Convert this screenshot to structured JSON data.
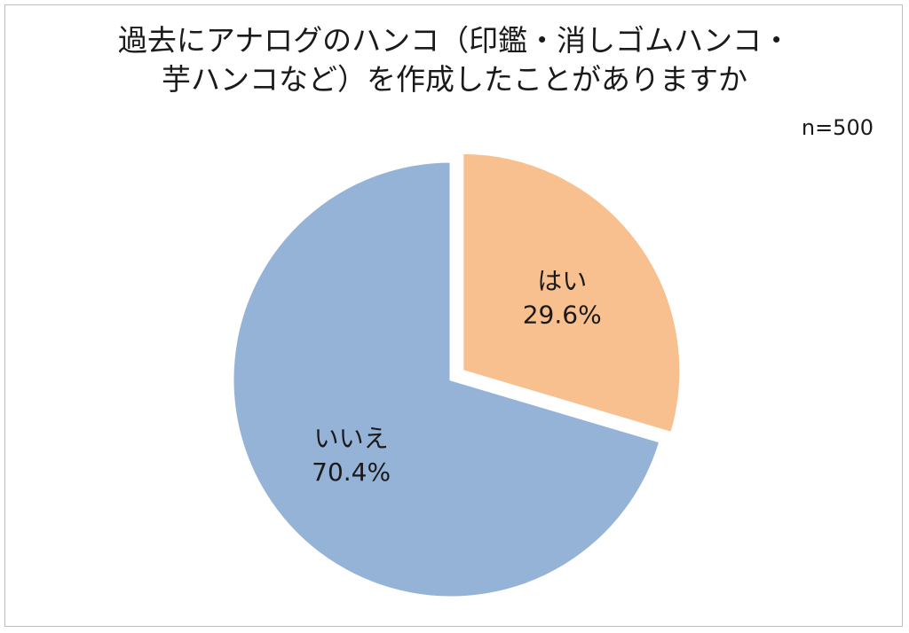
{
  "chart_data": {
    "type": "pie",
    "title": [
      "過去にアナログのハンコ（印鑑・消しゴムハンコ・",
      "芋ハンコなど）を作成したことがありますか"
    ],
    "note": "n=500",
    "slices": [
      {
        "label": "はい",
        "value": 29.6,
        "value_text": "29.6%",
        "color": "#F8C08F",
        "exploded": true
      },
      {
        "label": "いいえ",
        "value": 70.4,
        "value_text": "70.4%",
        "color": "#95B3D7",
        "exploded": false
      }
    ],
    "start": "12 o'clock",
    "direction": "clockwise",
    "slice_border_color": "#ffffff"
  }
}
